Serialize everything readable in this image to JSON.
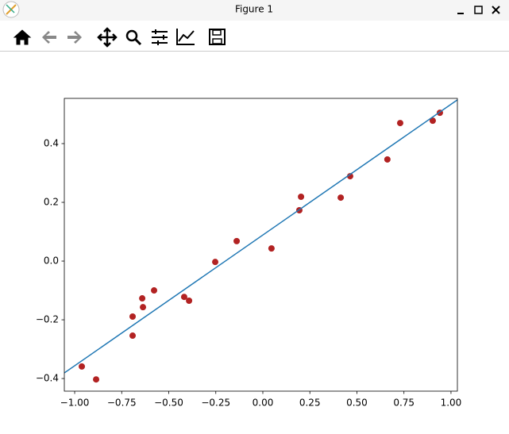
{
  "window": {
    "title": "Figure 1"
  },
  "chart_data": {
    "type": "scatter",
    "xlim": [
      -1.055,
      1.034
    ],
    "ylim": [
      -0.443,
      0.554
    ],
    "xticks": [
      {
        "value": -1,
        "label": "−1.00"
      },
      {
        "value": -0.75,
        "label": "−0.75"
      },
      {
        "value": -0.5,
        "label": "−0.50"
      },
      {
        "value": -0.25,
        "label": "−0.25"
      },
      {
        "value": 0,
        "label": "0.00"
      },
      {
        "value": 0.25,
        "label": "0.25"
      },
      {
        "value": 0.5,
        "label": "0.50"
      },
      {
        "value": 0.75,
        "label": "0.75"
      },
      {
        "value": 1,
        "label": "1.00"
      }
    ],
    "yticks": [
      {
        "value": -0.4,
        "label": "−0.4"
      },
      {
        "value": -0.2,
        "label": "−0.2"
      },
      {
        "value": 0,
        "label": "0.0"
      },
      0.2,
      0.4
    ],
    "grid": false,
    "series": [
      {
        "type": "scatter",
        "color": "#b22222",
        "x": [
          -0.962,
          -0.886,
          -0.692,
          -0.692,
          -0.641,
          -0.637,
          -0.578,
          -0.418,
          -0.392,
          -0.253,
          -0.139,
          0.046,
          0.194,
          0.203,
          0.414,
          0.464,
          0.662,
          0.73,
          0.903,
          0.941
        ],
        "values": [
          -0.359,
          -0.403,
          -0.189,
          -0.254,
          -0.127,
          -0.157,
          -0.1,
          -0.122,
          -0.135,
          -0.003,
          0.068,
          0.043,
          0.173,
          0.219,
          0.216,
          0.289,
          0.346,
          0.47,
          0.478,
          0.505
        ]
      },
      {
        "type": "line",
        "color": "#1f77b4",
        "x": [
          -1.055,
          1.034
        ],
        "values": [
          -0.381,
          0.549
        ]
      }
    ]
  }
}
